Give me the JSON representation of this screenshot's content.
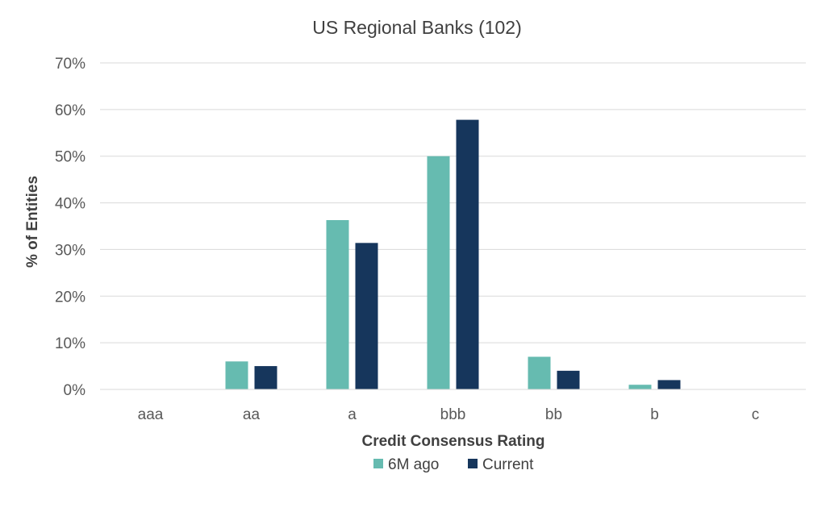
{
  "chart_data": {
    "type": "bar",
    "title": "US Regional Banks (102)",
    "xlabel": "Credit Consensus Rating",
    "ylabel": "% of Entities",
    "categories": [
      "aaa",
      "aa",
      "a",
      "bbb",
      "bb",
      "b",
      "c"
    ],
    "series": [
      {
        "name": "6M ago",
        "color": "#66bbb0",
        "values": [
          0,
          6,
          36.3,
          50,
          7,
          1,
          0
        ]
      },
      {
        "name": "Current",
        "color": "#16365c",
        "values": [
          0,
          5,
          31.4,
          57.8,
          4,
          2,
          0
        ]
      }
    ],
    "ylim": [
      0,
      70
    ],
    "yticks": [
      0,
      10,
      20,
      30,
      40,
      50,
      60,
      70
    ],
    "ytick_labels": [
      "0%",
      "10%",
      "20%",
      "30%",
      "40%",
      "50%",
      "60%",
      "70%"
    ],
    "grid": true,
    "legend_position": "bottom"
  }
}
